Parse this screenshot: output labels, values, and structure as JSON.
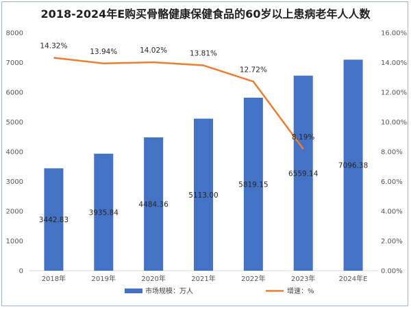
{
  "chart_data": {
    "type": "bar",
    "title": "2018-2024年E购买骨骼健康保健食品的60岁以上患病老年人人数",
    "categories": [
      "2018年",
      "2019年",
      "2020年",
      "2021年",
      "2022年",
      "2023年",
      "2024年E"
    ],
    "series": [
      {
        "name": "市场规模：万人",
        "type": "bar",
        "axis": "left",
        "color": "#4472c4",
        "values": [
          3442.83,
          3935.84,
          4484.36,
          5113.0,
          5819.15,
          6559.14,
          7096.38
        ],
        "labels": [
          "3442.83",
          "3935.84",
          "4484.36",
          "5113.00",
          "5819.15",
          "6559.14",
          "7096.38"
        ]
      },
      {
        "name": "增速：%",
        "type": "line",
        "axis": "right",
        "color": "#ed7d31",
        "values": [
          14.32,
          13.94,
          14.02,
          13.81,
          12.72,
          8.19,
          null
        ],
        "labels": [
          "14.32%",
          "13.94%",
          "14.02%",
          "13.81%",
          "12.72%",
          "8.19%",
          null
        ]
      }
    ],
    "y_left": {
      "min": 0,
      "max": 8000,
      "step": 1000,
      "ticks": [
        "0",
        "1000",
        "2000",
        "3000",
        "4000",
        "5000",
        "6000",
        "7000",
        "8000"
      ]
    },
    "y_right": {
      "min": 0,
      "max": 16,
      "step": 2,
      "ticks": [
        "0.00%",
        "2.00%",
        "4.00%",
        "6.00%",
        "8.00%",
        "10.00%",
        "12.00%",
        "14.00%",
        "16.00%"
      ]
    },
    "grid": false,
    "legend_position": "bottom"
  }
}
